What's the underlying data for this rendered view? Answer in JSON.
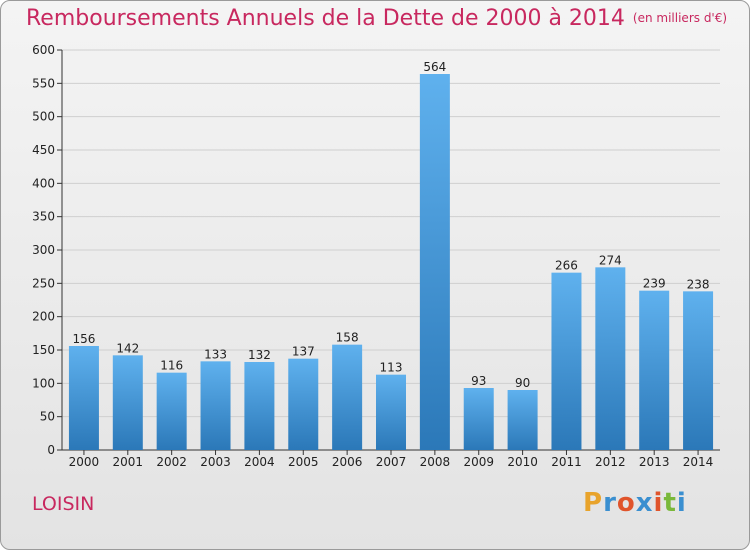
{
  "header": {
    "title": "Remboursements Annuels de la Dette de 2000 à 2014",
    "subtitle": "(en milliers d'€)"
  },
  "footer": {
    "place": "LOISIN",
    "logo": "Proxiti"
  },
  "colors": {
    "title": "#c8285f",
    "bar_top": "#5fb1ee",
    "bar_bottom": "#2b78b8"
  },
  "chart_data": {
    "type": "bar",
    "categories": [
      "2000",
      "2001",
      "2002",
      "2003",
      "2004",
      "2005",
      "2006",
      "2007",
      "2008",
      "2009",
      "2010",
      "2011",
      "2012",
      "2013",
      "2014"
    ],
    "values": [
      156,
      142,
      116,
      133,
      132,
      137,
      158,
      113,
      564,
      93,
      90,
      266,
      274,
      239,
      238
    ],
    "ylim": [
      0,
      600
    ],
    "yticks": [
      0,
      50,
      100,
      150,
      200,
      250,
      300,
      350,
      400,
      450,
      500,
      550,
      600
    ],
    "grid": true
  }
}
